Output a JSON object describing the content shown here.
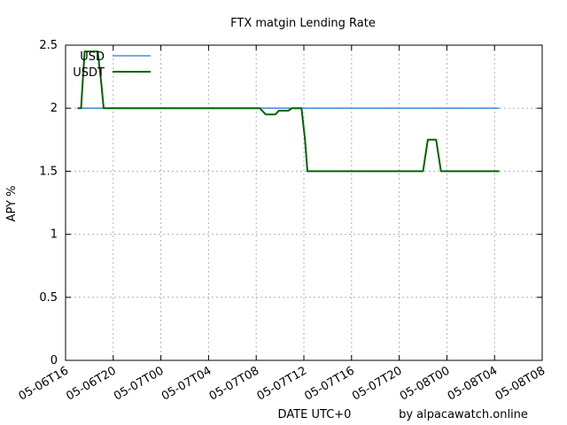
{
  "chart_data": {
    "type": "line",
    "title": "FTX matgin Lending Rate",
    "xlabel": "DATE UTC+0",
    "ylabel": "APY %",
    "credit": "by alpacawatch.online",
    "x_range_hours": [
      0,
      40
    ],
    "ylim": [
      0,
      2.5
    ],
    "y_ticks": [
      0,
      0.5,
      1,
      1.5,
      2,
      2.5
    ],
    "x_ticks": [
      {
        "h": 0,
        "label": "05-06T16"
      },
      {
        "h": 4,
        "label": "05-06T20"
      },
      {
        "h": 8,
        "label": "05-07T00"
      },
      {
        "h": 12,
        "label": "05-07T04"
      },
      {
        "h": 16,
        "label": "05-07T08"
      },
      {
        "h": 20,
        "label": "05-07T12"
      },
      {
        "h": 24,
        "label": "05-07T16"
      },
      {
        "h": 28,
        "label": "05-07T20"
      },
      {
        "h": 32,
        "label": "05-08T00"
      },
      {
        "h": 36,
        "label": "05-08T04"
      },
      {
        "h": 40,
        "label": "05-08T08"
      }
    ],
    "grid": true,
    "legend_position": "top-left",
    "series": [
      {
        "name": "USD",
        "color": "#4a90d9",
        "points": [
          [
            1.0,
            2.0
          ],
          [
            36.4,
            2.0
          ]
        ]
      },
      {
        "name": "USDT",
        "color": "#006400",
        "points": [
          [
            1.0,
            2.0
          ],
          [
            1.3,
            2.0
          ],
          [
            1.6,
            2.45
          ],
          [
            2.7,
            2.45
          ],
          [
            3.0,
            2.2
          ],
          [
            3.2,
            2.0
          ],
          [
            16.3,
            2.0
          ],
          [
            16.8,
            1.95
          ],
          [
            17.6,
            1.95
          ],
          [
            17.9,
            1.98
          ],
          [
            18.7,
            1.98
          ],
          [
            19.0,
            2.0
          ],
          [
            19.8,
            2.0
          ],
          [
            20.1,
            1.75
          ],
          [
            20.3,
            1.5
          ],
          [
            30.0,
            1.5
          ],
          [
            30.4,
            1.75
          ],
          [
            31.1,
            1.75
          ],
          [
            31.5,
            1.5
          ],
          [
            36.4,
            1.5
          ]
        ]
      }
    ]
  }
}
